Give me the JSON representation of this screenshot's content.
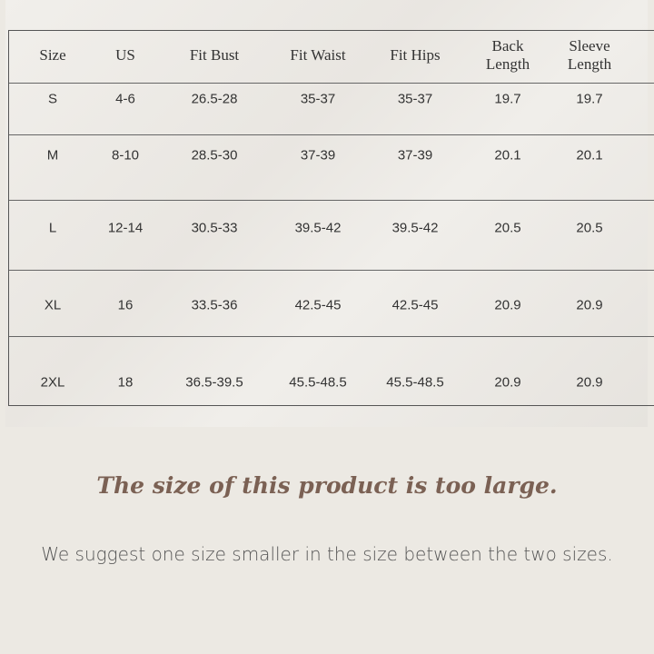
{
  "table": {
    "headers": [
      "Size",
      "US",
      "Fit Bust",
      "Fit Waist",
      "Fit Hips",
      "Back Length",
      "Sleeve Length"
    ],
    "rows": [
      [
        "S",
        "4-6",
        "26.5-28",
        "35-37",
        "35-37",
        "19.7",
        "19.7"
      ],
      [
        "M",
        "8-10",
        "28.5-30",
        "37-39",
        "37-39",
        "20.1",
        "20.1"
      ],
      [
        "L",
        "12-14",
        "30.5-33",
        "39.5-42",
        "39.5-42",
        "20.5",
        "20.5"
      ],
      [
        "XL",
        "16",
        "33.5-36",
        "42.5-45",
        "42.5-45",
        "20.9",
        "20.9"
      ],
      [
        "2XL",
        "18",
        "36.5-39.5",
        "45.5-48.5",
        "45.5-48.5",
        "20.9",
        "20.9"
      ]
    ]
  },
  "heading": "The size of this product is too large.",
  "note": "We suggest one size smaller in the size between the two sizes.",
  "colors": {
    "heading": "#7b6154",
    "background": "#ece9e3"
  }
}
